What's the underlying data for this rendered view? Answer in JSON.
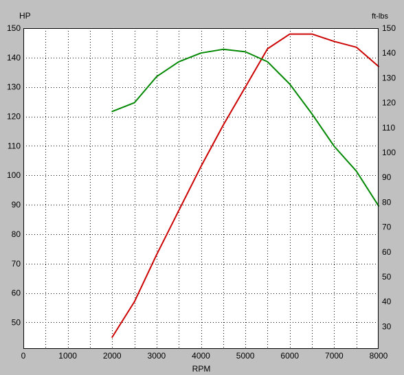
{
  "chart_data": {
    "type": "line",
    "xlabel": "RPM",
    "ylabel_left": "HP",
    "ylabel_right": "ft-lbs",
    "xlim": [
      0,
      8000
    ],
    "ylim_left": [
      41,
      150
    ],
    "ylim_right": [
      21,
      150
    ],
    "x_ticks": [
      0,
      1000,
      2000,
      3000,
      4000,
      5000,
      6000,
      7000,
      8000
    ],
    "y_ticks_left": [
      50,
      60,
      70,
      80,
      90,
      100,
      110,
      120,
      130,
      140,
      150
    ],
    "y_ticks_right": [
      30,
      40,
      50,
      60,
      70,
      80,
      90,
      100,
      110,
      120,
      130,
      140,
      150
    ],
    "grid": true,
    "series": [
      {
        "axis": "left",
        "color": "#cc0000",
        "x": [
          2000,
          2500,
          3000,
          3500,
          4000,
          4500,
          5000,
          5500,
          6000,
          6500,
          7000,
          7500,
          8000
        ],
        "y": [
          45,
          57,
          73,
          88,
          103,
          117,
          130,
          143,
          148,
          148,
          145.5,
          143.5,
          137
        ]
      },
      {
        "axis": "right",
        "color": "#008800",
        "x": [
          2000,
          2500,
          3000,
          3500,
          4000,
          4500,
          5000,
          5500,
          6000,
          6500,
          7000,
          7500,
          8000
        ],
        "y": [
          116.5,
          120,
          130.5,
          136.5,
          140,
          141.5,
          140.5,
          136.5,
          127.5,
          115.5,
          102.5,
          92.5,
          78.5
        ]
      }
    ]
  }
}
